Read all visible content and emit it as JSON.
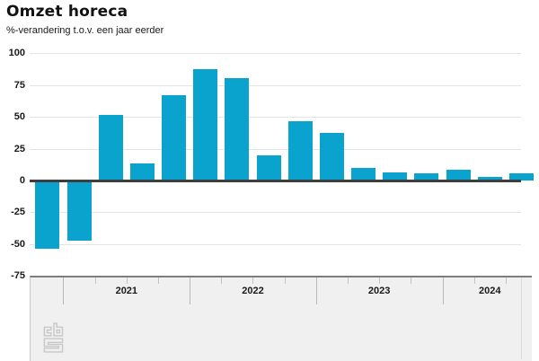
{
  "header": {
    "title": "Omzet horeca",
    "subtitle": "%-verandering t.o.v. een jaar eerder"
  },
  "menu": {
    "icon": "hamburger-menu-icon"
  },
  "chart_data": {
    "type": "bar",
    "title": "Omzet horeca",
    "subtitle": "%-verandering t.o.v. een jaar eerder",
    "unit": "%",
    "categories": [
      "2020-Q4",
      "2021-Q1",
      "2021-Q2",
      "2021-Q3",
      "2021-Q4",
      "2022-Q1",
      "2022-Q2",
      "2022-Q3",
      "2022-Q4",
      "2023-Q1",
      "2023-Q2",
      "2023-Q3",
      "2023-Q4",
      "2024-Q1",
      "2024-Q2",
      "2024-Q3"
    ],
    "values": [
      -52,
      -46,
      52,
      14,
      67,
      88,
      81,
      20,
      47,
      38,
      10,
      7,
      6,
      9,
      3,
      6
    ],
    "year_labels": [
      "2021",
      "2022",
      "2023",
      "2024"
    ],
    "y_ticks": [
      100,
      75,
      50,
      25,
      0,
      -25,
      -50,
      -75
    ],
    "ylim": [
      -75,
      100
    ],
    "grid": true,
    "legend": "none",
    "bar_color": "#0aa3cd"
  },
  "footer": {
    "logo": "cbs-logo"
  }
}
